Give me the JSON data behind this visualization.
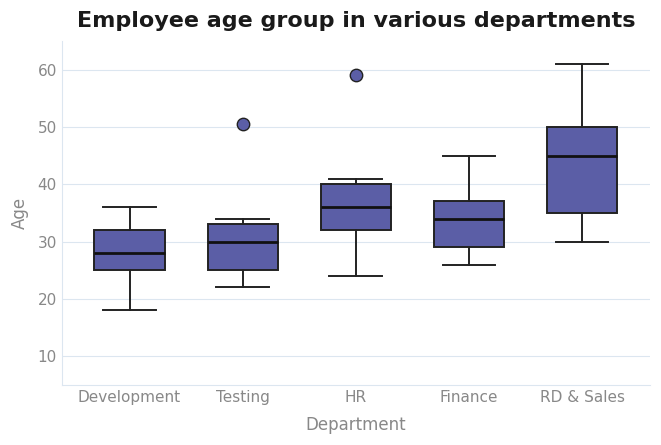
{
  "title": "Employee age group in various departments",
  "xlabel": "Department",
  "ylabel": "Age",
  "categories": [
    "Development",
    "Testing",
    "HR",
    "Finance",
    "RD & Sales"
  ],
  "box_data": {
    "Development": {
      "min": 18,
      "q1": 25,
      "median": 28,
      "q3": 32,
      "max": 36,
      "outliers": []
    },
    "Testing": {
      "min": 22,
      "q1": 25,
      "median": 30,
      "q3": 33,
      "max": 34,
      "outliers": [
        50.5
      ]
    },
    "HR": {
      "min": 24,
      "q1": 32,
      "median": 36,
      "q3": 40,
      "max": 41,
      "outliers": [
        59
      ]
    },
    "Finance": {
      "min": 26,
      "q1": 29,
      "median": 34,
      "q3": 37,
      "max": 45,
      "outliers": []
    },
    "RD & Sales": {
      "min": 30,
      "q1": 35,
      "median": 45,
      "q3": 50,
      "max": 61,
      "outliers": []
    }
  },
  "box_color": "#5B5EA6",
  "box_edge_color": "#222222",
  "median_color": "#111111",
  "whisker_color": "#222222",
  "outlier_color": "#5B5EA6",
  "outlier_edge_color": "#222222",
  "background_color": "#ffffff",
  "grid_color": "#dce6f0",
  "ylim": [
    5,
    65
  ],
  "yticks": [
    10,
    20,
    30,
    40,
    50,
    60
  ],
  "title_fontsize": 16,
  "axis_label_fontsize": 12,
  "tick_fontsize": 11,
  "tick_color": "#888888",
  "box_width": 0.62,
  "linewidth": 1.4,
  "cap_ratio": 0.75
}
